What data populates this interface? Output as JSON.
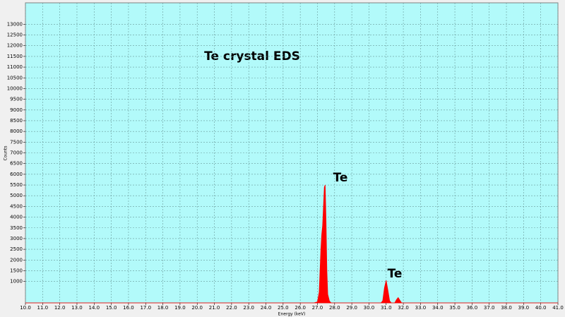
{
  "chart_data": {
    "type": "area",
    "title": "Te crystal  EDS",
    "x_label": "Energy (keV)",
    "y_label": "Counts",
    "annotations": [
      "Te",
      "Te"
    ],
    "color": "#ff0000",
    "grid": true,
    "x": [
      10,
      26.8,
      27.0,
      27.1,
      27.2,
      27.25,
      27.3,
      27.35,
      27.4,
      27.45,
      27.5,
      27.55,
      27.6,
      27.7,
      27.8,
      30.7,
      30.8,
      30.9,
      31.0,
      31.1,
      31.2,
      31.3,
      31.5,
      31.6,
      31.7,
      31.8,
      31.9,
      41
    ],
    "values": [
      0,
      0,
      50,
      500,
      2500,
      3200,
      3600,
      4500,
      5400,
      5500,
      3800,
      1500,
      400,
      80,
      0,
      0,
      100,
      700,
      1050,
      600,
      100,
      0,
      0,
      150,
      250,
      120,
      0,
      0
    ],
    "xlim": [
      10,
      41
    ],
    "ylim": [
      0,
      14000
    ],
    "xticks": [
      {
        "value": 10,
        "label": "10.0"
      },
      {
        "value": 11,
        "label": "11.0"
      },
      {
        "value": 12,
        "label": "12.0"
      },
      {
        "value": 13,
        "label": "13.0"
      },
      {
        "value": 14,
        "label": "14.0"
      },
      {
        "value": 15,
        "label": "15.0"
      },
      {
        "value": 16,
        "label": "16.0"
      },
      {
        "value": 17,
        "label": "17.0"
      },
      {
        "value": 18,
        "label": "18.0"
      },
      {
        "value": 19,
        "label": "19.0"
      },
      {
        "value": 20,
        "label": "20.0"
      },
      {
        "value": 21,
        "label": "21.0"
      },
      {
        "value": 22,
        "label": "22.0"
      },
      {
        "value": 23,
        "label": "23.0"
      },
      {
        "value": 24,
        "label": "24.0"
      },
      {
        "value": 25,
        "label": "25.0"
      },
      {
        "value": 26,
        "label": "26.0"
      },
      {
        "value": 27,
        "label": "27.0"
      },
      {
        "value": 28,
        "label": "28.0"
      },
      {
        "value": 29,
        "label": "29.0"
      },
      {
        "value": 30,
        "label": "30.0"
      },
      {
        "value": 31,
        "label": "31.0"
      },
      {
        "value": 32,
        "label": "32.0"
      },
      {
        "value": 33,
        "label": "33.0"
      },
      {
        "value": 34,
        "label": "34.0"
      },
      {
        "value": 35,
        "label": "35.0"
      },
      {
        "value": 36,
        "label": "36.0"
      },
      {
        "value": 37,
        "label": "37.0"
      },
      {
        "value": 38,
        "label": "38.0"
      },
      {
        "value": 39,
        "label": "39.0"
      },
      {
        "value": 40,
        "label": "40.0"
      },
      {
        "value": 41,
        "label": "41.0"
      }
    ],
    "yticks": [
      1000,
      1500,
      2000,
      2500,
      3000,
      3500,
      4000,
      4500,
      5000,
      5500,
      6000,
      6500,
      7000,
      7500,
      8000,
      8500,
      9000,
      9500,
      10000,
      10500,
      11000,
      11500,
      12000,
      12500,
      13000
    ]
  }
}
